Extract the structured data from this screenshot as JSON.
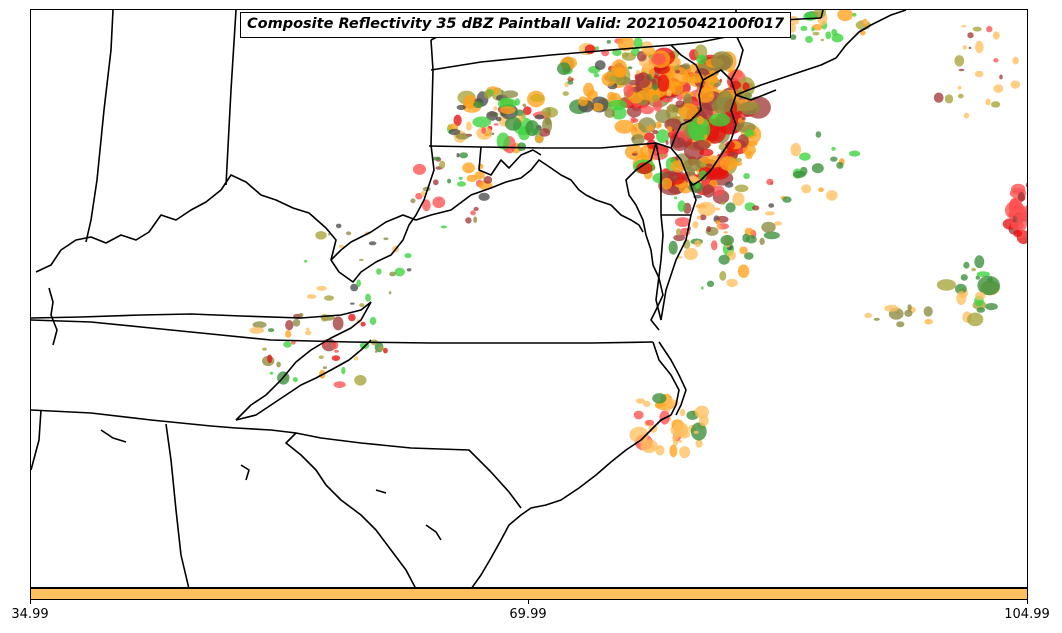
{
  "title": "Composite Reflectivity 35 dBZ Paintball Valid: 202105042100f017",
  "colorbar": {
    "color": "#ffc060",
    "ticks": [
      "34.99",
      "69.99",
      "104.99"
    ]
  },
  "palette": {
    "orange": "#ffa21a",
    "light_orange": "#ffc060",
    "red": "#e8110e",
    "light_red": "#ff4f4f",
    "dark_red": "#a33a3a",
    "green": "#3bd43b",
    "dark_green": "#3a8f3a",
    "olive": "#a7a43a",
    "olive_brown": "#8c8a40",
    "gray": "#4d4d4d"
  },
  "map": {
    "region": "Mid-Atlantic United States",
    "boundaries": "state borders",
    "background": "#ffffff",
    "boundary_color": "#000000"
  }
}
